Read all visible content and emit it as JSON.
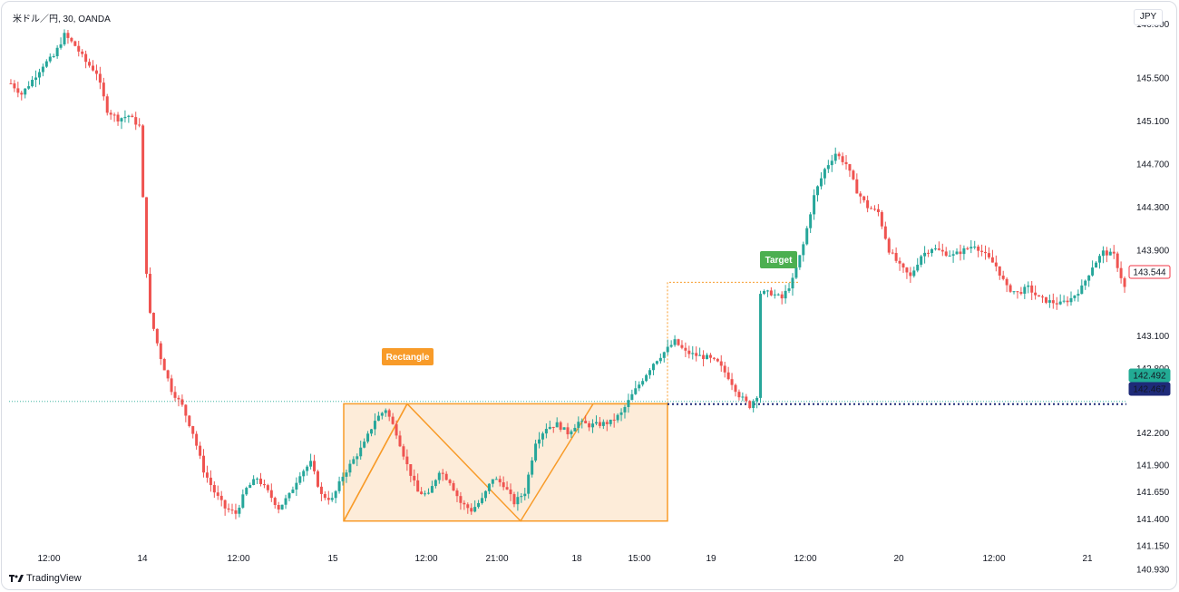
{
  "header": {
    "symbol": "米ドル／円, 30, OANDA",
    "currency": "JPY"
  },
  "footer": {
    "brand": "TradingView"
  },
  "colors": {
    "up": "#26a69a",
    "down": "#ef5350",
    "pattern": "#f89b29",
    "pattern_fill": "#fde9d2",
    "target": "#4caf50",
    "current_level": "#1e2a78",
    "teal_level": "#22ab94",
    "price_tag": "#f23645"
  },
  "chart_data": {
    "type": "candlestick",
    "title": "米ドル／円, 30, OANDA",
    "currency": "JPY",
    "x_ticks": [
      "12:00",
      "14",
      "12:00",
      "15",
      "12:00",
      "21:00",
      "18",
      "15:00",
      "19",
      "12:00",
      "20",
      "12:00",
      "21"
    ],
    "y_ticks": [
      "146.000",
      "145.500",
      "145.100",
      "144.700",
      "144.300",
      "143.900",
      "143.100",
      "142.800",
      "142.200",
      "141.900",
      "141.650",
      "141.400",
      "141.150",
      "140.930"
    ],
    "ylim": [
      140.8,
      146.05
    ],
    "close_path": [
      [
        0,
        145.45
      ],
      [
        3,
        145.35
      ],
      [
        6,
        145.48
      ],
      [
        9,
        145.62
      ],
      [
        12,
        145.7
      ],
      [
        15,
        145.9
      ],
      [
        18,
        145.8
      ],
      [
        21,
        145.65
      ],
      [
        24,
        145.55
      ],
      [
        27,
        145.2
      ],
      [
        30,
        145.12
      ],
      [
        33,
        145.15
      ],
      [
        36,
        145.05
      ],
      [
        38,
        143.7
      ],
      [
        39,
        143.3
      ],
      [
        42,
        142.9
      ],
      [
        45,
        142.6
      ],
      [
        48,
        142.45
      ],
      [
        51,
        142.2
      ],
      [
        54,
        141.85
      ],
      [
        57,
        141.65
      ],
      [
        60,
        141.5
      ],
      [
        63,
        141.45
      ],
      [
        66,
        141.68
      ],
      [
        69,
        141.78
      ],
      [
        72,
        141.65
      ],
      [
        75,
        141.5
      ],
      [
        78,
        141.62
      ],
      [
        81,
        141.82
      ],
      [
        84,
        141.92
      ],
      [
        87,
        141.62
      ],
      [
        90,
        141.58
      ],
      [
        93,
        141.8
      ],
      [
        96,
        141.95
      ],
      [
        99,
        142.1
      ],
      [
        102,
        142.32
      ],
      [
        105,
        142.42
      ],
      [
        108,
        142.2
      ],
      [
        111,
        141.9
      ],
      [
        114,
        141.65
      ],
      [
        117,
        141.62
      ],
      [
        120,
        141.85
      ],
      [
        123,
        141.75
      ],
      [
        126,
        141.55
      ],
      [
        129,
        141.48
      ],
      [
        132,
        141.58
      ],
      [
        135,
        141.78
      ],
      [
        138,
        141.72
      ],
      [
        141,
        141.55
      ],
      [
        144,
        141.65
      ],
      [
        147,
        142.12
      ],
      [
        150,
        142.25
      ],
      [
        153,
        142.28
      ],
      [
        156,
        142.2
      ],
      [
        159,
        142.3
      ],
      [
        162,
        142.27
      ],
      [
        165,
        142.28
      ],
      [
        168,
        142.3
      ],
      [
        171,
        142.38
      ],
      [
        174,
        142.55
      ],
      [
        177,
        142.7
      ],
      [
        180,
        142.85
      ],
      [
        183,
        142.95
      ],
      [
        186,
        143.05
      ],
      [
        189,
        142.95
      ],
      [
        192,
        142.92
      ],
      [
        195,
        142.9
      ],
      [
        198,
        142.85
      ],
      [
        201,
        142.72
      ],
      [
        204,
        142.55
      ],
      [
        207,
        142.45
      ],
      [
        209,
        142.55
      ],
      [
        210,
        143.5
      ],
      [
        213,
        143.5
      ],
      [
        216,
        143.45
      ],
      [
        219,
        143.62
      ],
      [
        222,
        143.95
      ],
      [
        225,
        144.4
      ],
      [
        228,
        144.65
      ],
      [
        231,
        144.8
      ],
      [
        234,
        144.7
      ],
      [
        237,
        144.45
      ],
      [
        240,
        144.3
      ],
      [
        243,
        144.25
      ],
      [
        246,
        143.9
      ],
      [
        249,
        143.75
      ],
      [
        252,
        143.65
      ],
      [
        255,
        143.85
      ],
      [
        258,
        143.92
      ],
      [
        261,
        143.88
      ],
      [
        264,
        143.85
      ],
      [
        267,
        143.9
      ],
      [
        270,
        143.95
      ],
      [
        273,
        143.85
      ],
      [
        276,
        143.75
      ],
      [
        279,
        143.55
      ],
      [
        282,
        143.5
      ],
      [
        285,
        143.55
      ],
      [
        288,
        143.45
      ],
      [
        291,
        143.42
      ],
      [
        294,
        143.4
      ],
      [
        297,
        143.45
      ],
      [
        300,
        143.55
      ],
      [
        303,
        143.75
      ],
      [
        306,
        143.88
      ],
      [
        309,
        143.85
      ],
      [
        312,
        143.55
      ]
    ],
    "current_level": 142.467,
    "teal_level": 142.492,
    "last_price": 143.544,
    "annotations": {
      "rectangle_label": "Rectangle",
      "target_label": "Target",
      "rectangle": {
        "high": 142.47,
        "low": 141.38
      },
      "target_level": 143.6
    },
    "last_price_label": "143.544",
    "teal_price_label": "142.492",
    "level_price_label": "142.467",
    "grid": false,
    "legend": "none"
  }
}
